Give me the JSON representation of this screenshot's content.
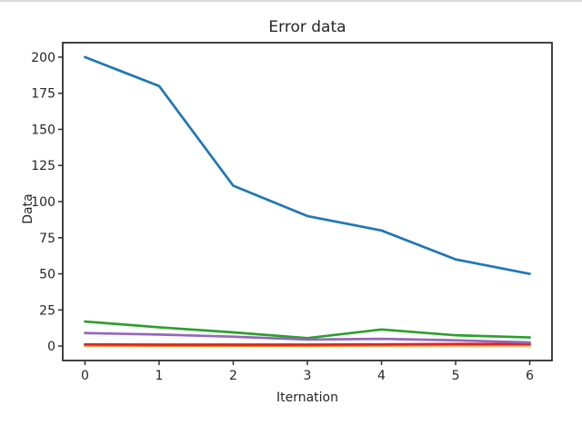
{
  "page": {
    "background_color": "#ffffff",
    "top_divider_color": "#d9d9d9",
    "text_color": "#262626",
    "spine_color": "#2e2e2e"
  },
  "chart_data": {
    "type": "line",
    "title": "Error data",
    "xlabel": "Iternation",
    "ylabel": "Data",
    "grid": false,
    "legend": "none",
    "x": [
      0,
      1,
      2,
      3,
      4,
      5,
      6
    ],
    "series": [
      {
        "name": "blue-series",
        "color": "#1f77b4",
        "values": [
          200,
          180,
          111,
          90,
          80,
          60,
          50
        ]
      },
      {
        "name": "orange-series",
        "color": "#ff7f0e",
        "values": [
          0.4,
          0.3,
          0.3,
          0.3,
          0.4,
          0.5,
          0.5
        ]
      },
      {
        "name": "green-series",
        "color": "#2ca02c",
        "values": [
          17,
          13,
          9.5,
          5.5,
          11.5,
          7.5,
          6
        ]
      },
      {
        "name": "red-series",
        "color": "#d62728",
        "values": [
          1.2,
          1,
          1,
          1,
          1.2,
          1.5,
          1.5
        ]
      },
      {
        "name": "purple-series",
        "color": "#9467bd",
        "values": [
          9,
          8,
          6.5,
          4.5,
          5,
          4,
          2.5
        ]
      }
    ],
    "xlim": [
      -0.3,
      6.3
    ],
    "ylim": [
      -10,
      210
    ],
    "xticks": [
      0,
      1,
      2,
      3,
      4,
      5,
      6
    ],
    "yticks": [
      0,
      25,
      50,
      75,
      100,
      125,
      150,
      175,
      200
    ]
  }
}
